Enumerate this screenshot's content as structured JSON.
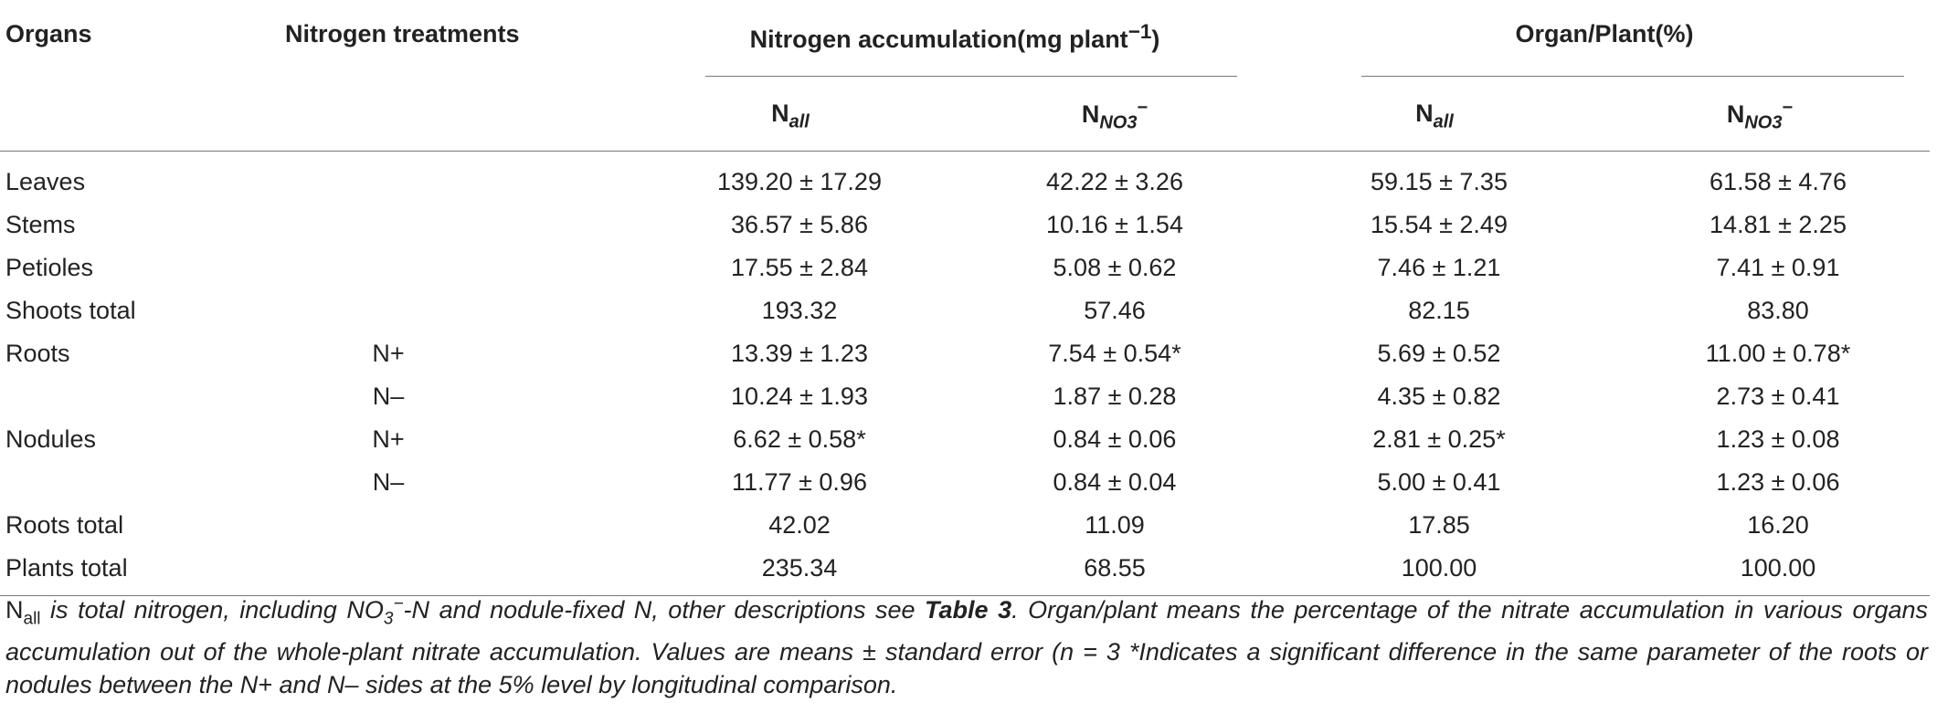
{
  "headers": {
    "organs": "Organs",
    "treatments": "Nitrogen treatments",
    "group1": "Nitrogen accumulation(mg plant",
    "group1_sup": "−1",
    "group1_close": ")",
    "group2": "Organ/Plant(%)",
    "sub_n": "N",
    "sub_all": "all",
    "sub_no3": "NO3",
    "sub_minus": "−"
  },
  "rows": [
    {
      "organ": "Leaves",
      "treatment": "",
      "n_all": "139.20 ± 17.29",
      "n_no3": "42.22 ± 3.26",
      "p_all": "59.15 ± 7.35",
      "p_no3": "61.58 ± 4.76"
    },
    {
      "organ": "Stems",
      "treatment": "",
      "n_all": "36.57 ± 5.86",
      "n_no3": "10.16 ± 1.54",
      "p_all": "15.54 ± 2.49",
      "p_no3": "14.81 ± 2.25"
    },
    {
      "organ": "Petioles",
      "treatment": "",
      "n_all": "17.55 ± 2.84",
      "n_no3": "5.08 ± 0.62",
      "p_all": "7.46 ± 1.21",
      "p_no3": "7.41 ± 0.91"
    },
    {
      "organ": "Shoots total",
      "treatment": "",
      "n_all": "193.32",
      "n_no3": "57.46",
      "p_all": "82.15",
      "p_no3": "83.80"
    },
    {
      "organ": "Roots",
      "treatment": "N+",
      "n_all": "13.39 ± 1.23",
      "n_no3": "7.54 ± 0.54*",
      "p_all": "5.69 ± 0.52",
      "p_no3": "11.00 ± 0.78*"
    },
    {
      "organ": "",
      "treatment": "N–",
      "n_all": "10.24 ± 1.93",
      "n_no3": "1.87 ± 0.28",
      "p_all": "4.35 ± 0.82",
      "p_no3": "2.73 ± 0.41"
    },
    {
      "organ": "Nodules",
      "treatment": "N+",
      "n_all": "6.62 ± 0.58*",
      "n_no3": "0.84 ± 0.06",
      "p_all": "2.81 ± 0.25*",
      "p_no3": "1.23 ± 0.08"
    },
    {
      "organ": "",
      "treatment": "N–",
      "n_all": "11.77 ± 0.96",
      "n_no3": "0.84 ± 0.04",
      "p_all": "5.00 ± 0.41",
      "p_no3": "1.23 ± 0.06"
    },
    {
      "organ": "Roots total",
      "treatment": "",
      "n_all": "42.02",
      "n_no3": "11.09",
      "p_all": "17.85",
      "p_no3": "16.20"
    },
    {
      "organ": "Plants total",
      "treatment": "",
      "n_all": "235.34",
      "n_no3": "68.55",
      "p_all": "100.00",
      "p_no3": "100.00"
    }
  ],
  "footnote": {
    "n": "N",
    "all": "all",
    "part1": " is total nitrogen, including NO",
    "sub3": "3",
    "supminus": "−",
    "part2": "-N and nodule-fixed N, other descriptions see ",
    "table_ref": "Table 3",
    "part3": ". Organ/plant means the percentage of the nitrate accumulation in various organs accumulation out of the whole-plant nitrate accumulation. Values are means ± standard error (n = 3 *Indicates a significant difference in the same parameter of the roots or nodules between the N+ and N– sides at the 5% level by longitudinal comparison."
  }
}
